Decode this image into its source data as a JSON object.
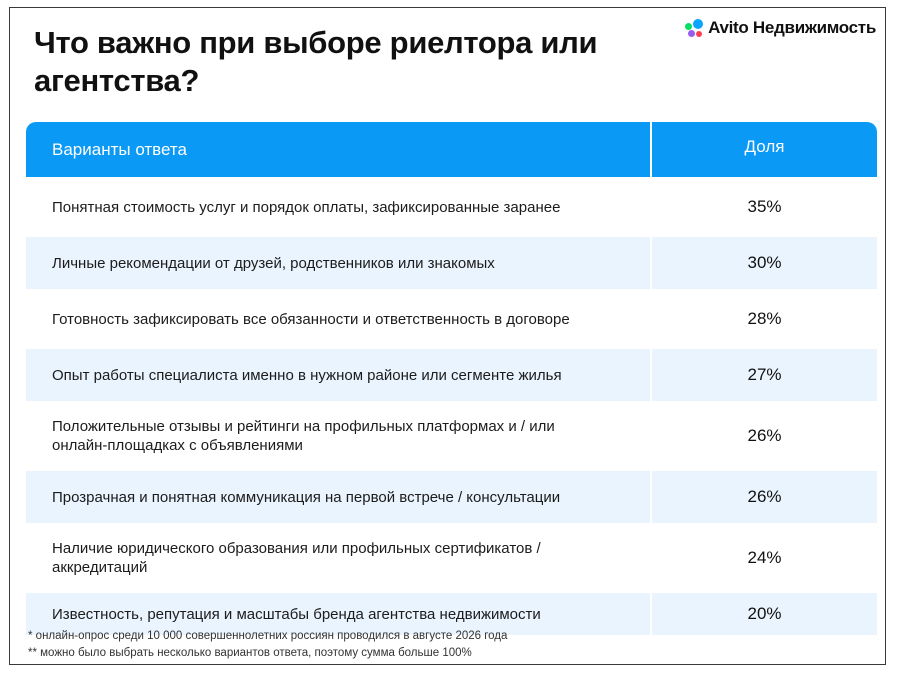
{
  "title": "Что важно при выборе риелтора или агентства?",
  "logo": {
    "text": "Avito Недвижимость",
    "icon": "avito-dots-icon",
    "colors": [
      "#0aa5ff",
      "#04e061",
      "#965eeb",
      "#ff4053"
    ]
  },
  "table": {
    "header": {
      "option": "Варианты ответа",
      "share": "Доля"
    },
    "header_color": "#0a99f5",
    "stripe_color": "#eaf4fe",
    "rows": [
      {
        "option": "Понятная стоимость услуг и порядок оплаты, зафиксированные заранее",
        "share": "35%"
      },
      {
        "option": "Личные рекомендации от друзей, родственников или знакомых",
        "share": "30%"
      },
      {
        "option": "Готовность зафиксировать все обязанности и ответственность в договоре",
        "share": "28%"
      },
      {
        "option": "Опыт работы специалиста именно в нужном районе или сегменте жилья",
        "share": "27%"
      },
      {
        "option": "Положительные отзывы и рейтинги на профильных платформах и / или онлайн-площадках с объявлениями",
        "share": "26%"
      },
      {
        "option": "Прозрачная и понятная коммуникация на первой встрече / консультации",
        "share": "26%"
      },
      {
        "option": "Наличие юридического образования или профильных сертификатов / аккредитаций",
        "share": "24%"
      },
      {
        "option": "Известность, репутация и масштабы бренда агентства недвижимости",
        "share": "20%"
      }
    ]
  },
  "footnotes": [
    "* онлайн-опрос среди 10 000 совершеннолетних россиян проводился в августе 2026 года",
    "** можно было выбрать несколько вариантов ответа, поэтому сумма больше 100%"
  ]
}
